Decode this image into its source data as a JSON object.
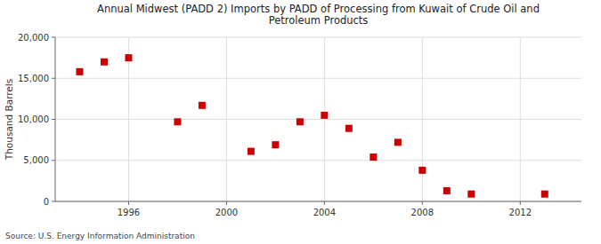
{
  "chart_data": {
    "type": "scatter",
    "title": "Annual Midwest (PADD 2) Imports by PADD of Processing from Kuwait of Crude Oil and\nPetroleum Products",
    "ylabel": "Thousand Barrels",
    "source": "Source: U.S. Energy Information Administration",
    "x": [
      1994,
      1995,
      1996,
      1998,
      1999,
      2001,
      2002,
      2003,
      2004,
      2005,
      2006,
      2007,
      2008,
      2009,
      2010,
      2013
    ],
    "values": [
      15800,
      17000,
      17500,
      9700,
      11700,
      6100,
      6900,
      9700,
      10500,
      8900,
      5400,
      7200,
      3800,
      1300,
      900,
      900
    ],
    "color": "#cc0000",
    "marker": "square",
    "xlim": [
      1993.0,
      2014.5
    ],
    "ylim": [
      0,
      20000
    ],
    "xticks": [
      1996,
      2000,
      2004,
      2008,
      2012
    ],
    "yticks": [
      0,
      {
        "value": 5000,
        "label": "5,000"
      },
      {
        "value": 10000,
        "label": "10,000"
      },
      {
        "value": 15000,
        "label": "15,000"
      },
      {
        "value": 20000,
        "label": "20,000"
      }
    ],
    "grid": true
  }
}
